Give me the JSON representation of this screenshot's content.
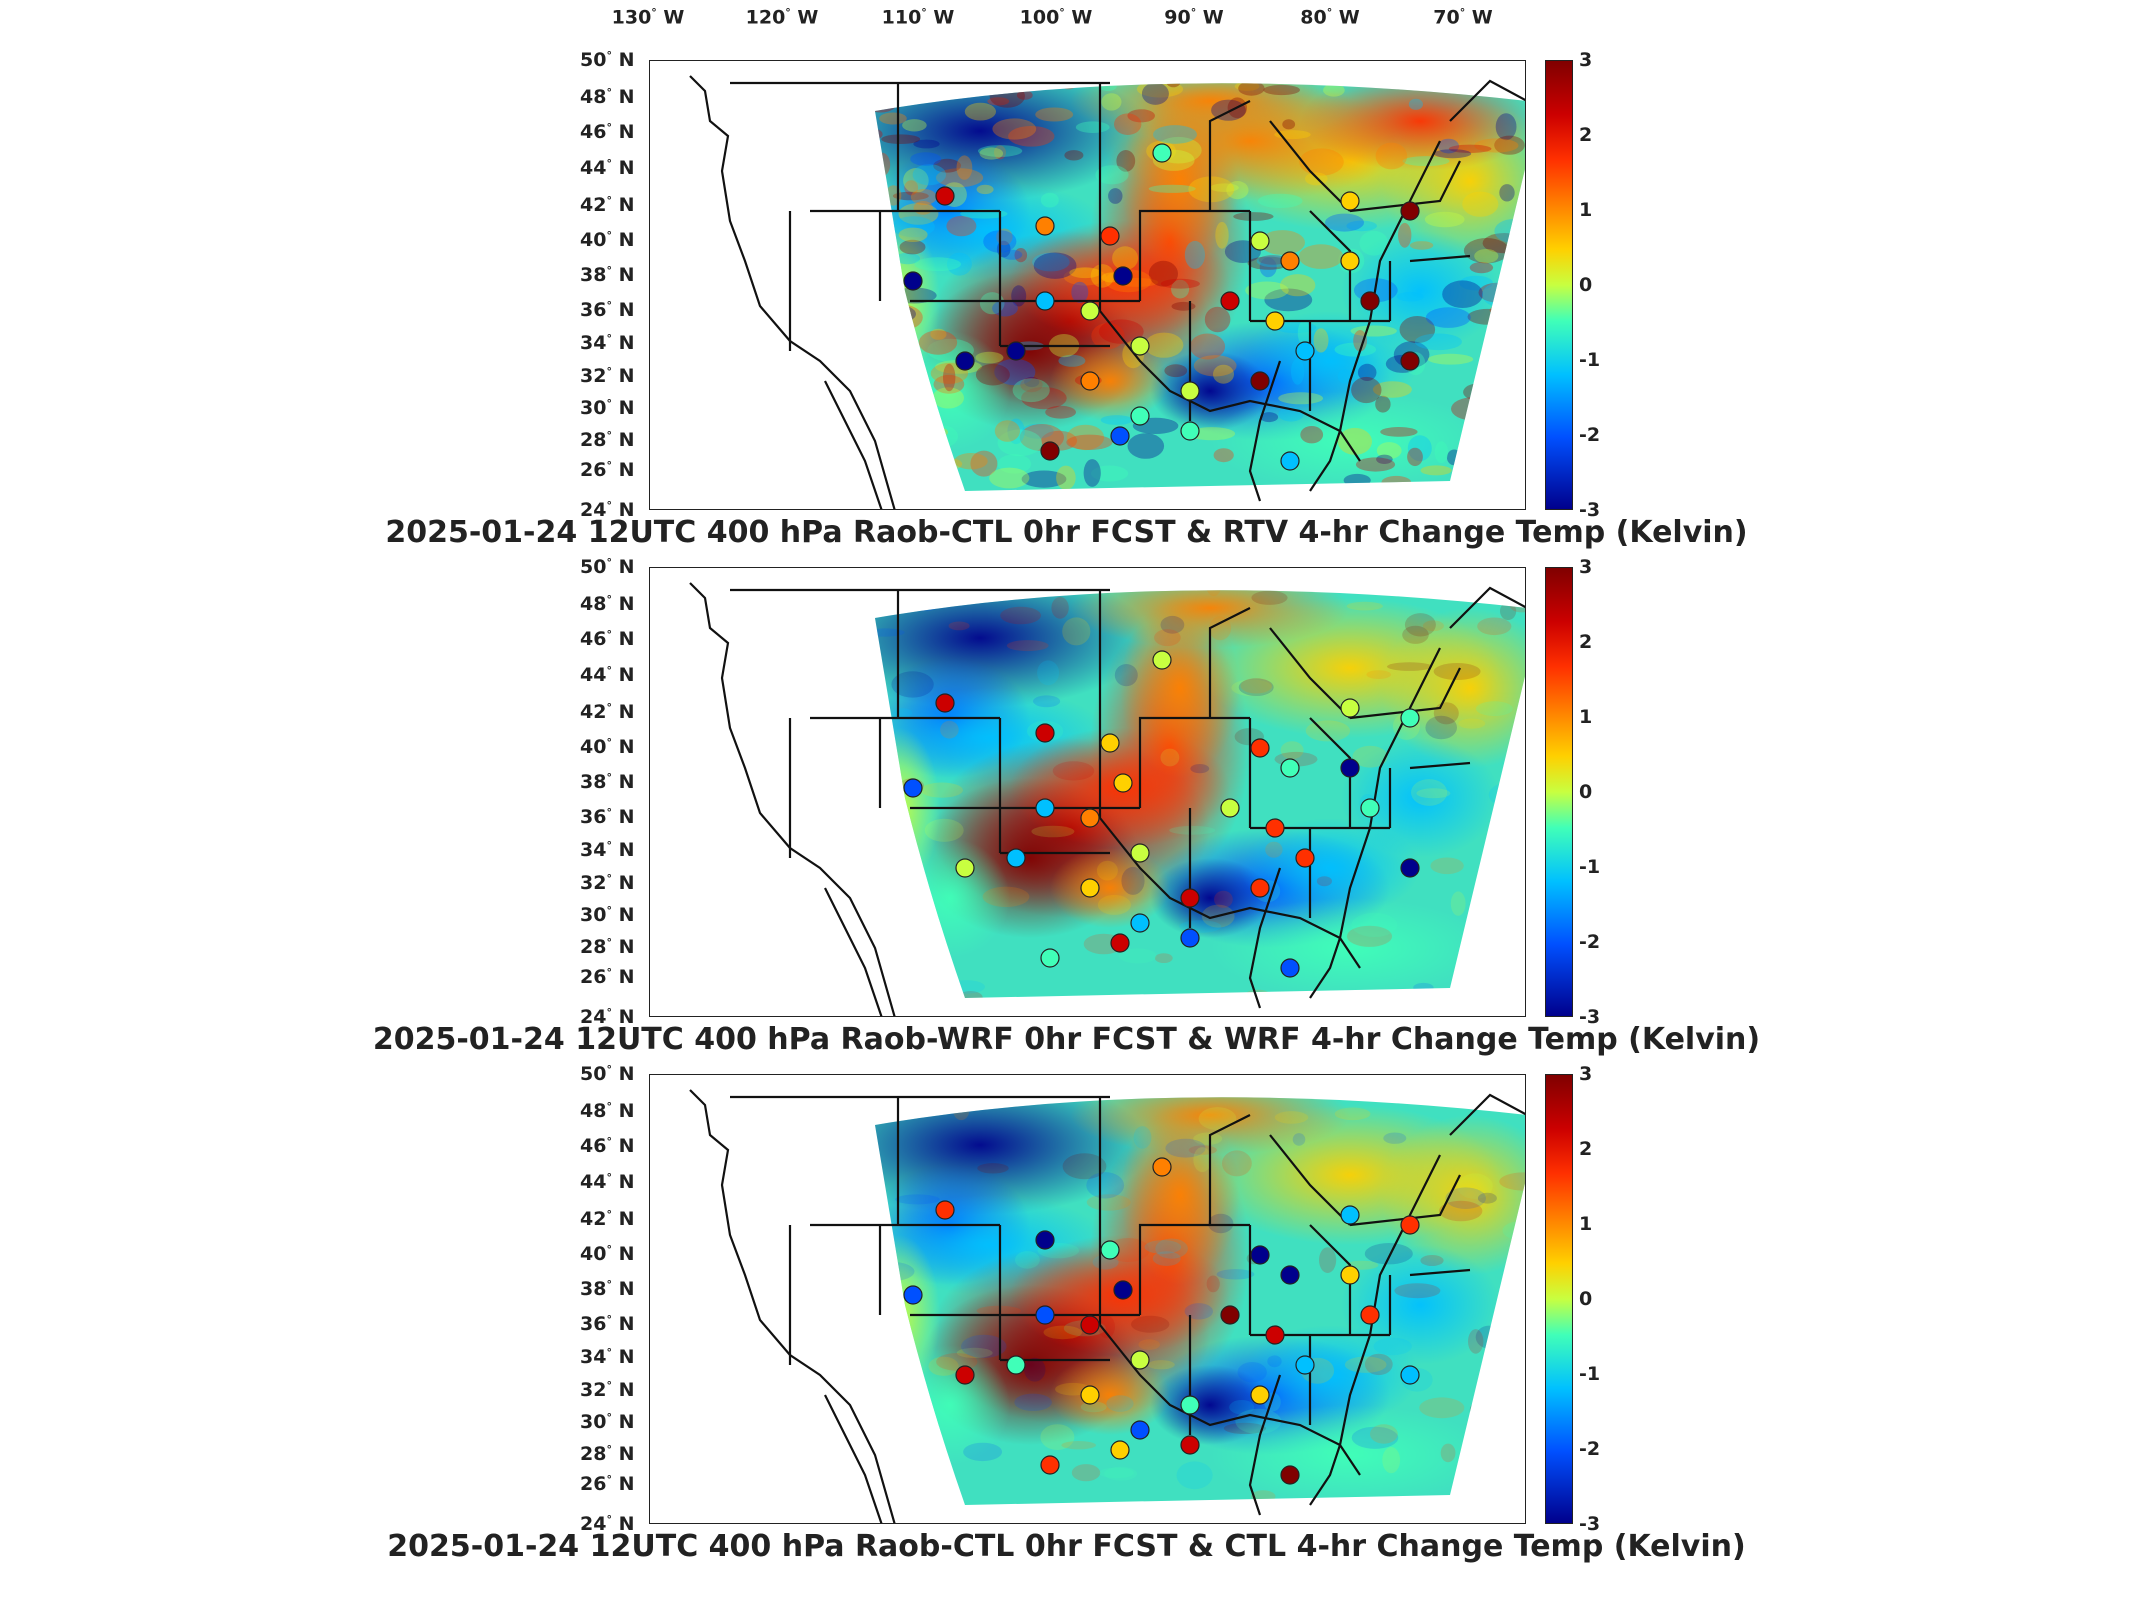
{
  "longitude_labels": [
    "130",
    "120",
    "110",
    "100",
    "90",
    "80",
    "70"
  ],
  "longitude_hemisphere": "W",
  "latitude_labels": [
    "50",
    "48",
    "46",
    "44",
    "42",
    "40",
    "38",
    "36",
    "34",
    "32",
    "30",
    "28",
    "26",
    "24"
  ],
  "latitude_hemisphere": "N",
  "degree_symbol": "°",
  "colorbar": {
    "ticks": [
      "3",
      "2",
      "1",
      "0",
      "-1",
      "-2",
      "-3"
    ],
    "range": [
      -3,
      3
    ],
    "colormap": "jet",
    "colors": [
      "#800000",
      "#cc0000",
      "#ff3000",
      "#ff8000",
      "#ffd000",
      "#c8ff40",
      "#40ffb8",
      "#00c0ff",
      "#0050ff",
      "#00008c"
    ]
  },
  "panels": [
    {
      "title": "2025-01-24 12UTC 400 hPa Raob-CTL 0hr FCST & RTV 4-hr Change Temp (Kelvin)"
    },
    {
      "title": "2025-01-24 12UTC 400 hPa Raob-WRF 0hr FCST & WRF 4-hr Change Temp (Kelvin)"
    },
    {
      "title": "2025-01-24 12UTC 400 hPa Raob-CTL 0hr FCST & CTL 4-hr Change Temp (Kelvin)"
    }
  ]
}
